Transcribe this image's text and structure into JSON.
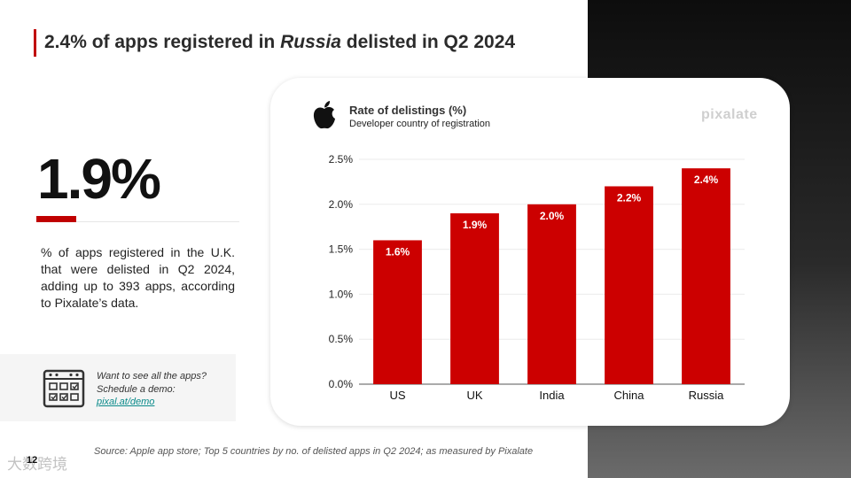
{
  "slide": {
    "title_pre": "2.4% of apps registered in ",
    "title_em": "Russia",
    "title_post": " delisted in Q2 2024",
    "page_number": "12",
    "watermark": "大数跨境",
    "source": "Source: Apple app store; Top 5 countries by no. of delisted apps in Q2 2024; as measured by Pixalate"
  },
  "stat": {
    "value": "1.9%",
    "description": "% of apps registered in the U.K. that were delisted in Q2 2024, adding up to 393 apps, according to Pixalate’s data."
  },
  "demo": {
    "icon": "calendar-icon",
    "text": "Want to see all the apps? Schedule a demo: ",
    "link": "pixal.at/demo"
  },
  "card": {
    "brand": "pixalate",
    "icon": "apple-logo-icon"
  },
  "colors": {
    "accent": "#c00000",
    "bar": "#cc0000"
  },
  "chart_data": {
    "type": "bar",
    "title": "Rate of delistings (%)",
    "subtitle": "Developer country of registration",
    "categories": [
      "US",
      "UK",
      "India",
      "China",
      "Russia"
    ],
    "values": [
      1.6,
      1.9,
      2.0,
      2.2,
      2.4
    ],
    "value_labels": [
      "1.6%",
      "1.9%",
      "2.0%",
      "2.2%",
      "2.4%"
    ],
    "ylim": [
      0,
      2.5
    ],
    "yticks": [
      0,
      0.5,
      1.0,
      1.5,
      2.0,
      2.5
    ],
    "ytick_labels": [
      "0.0%",
      "0.5%",
      "1.0%",
      "1.5%",
      "2.0%",
      "2.5%"
    ],
    "xlabel": "",
    "ylabel": "",
    "grid": true
  }
}
